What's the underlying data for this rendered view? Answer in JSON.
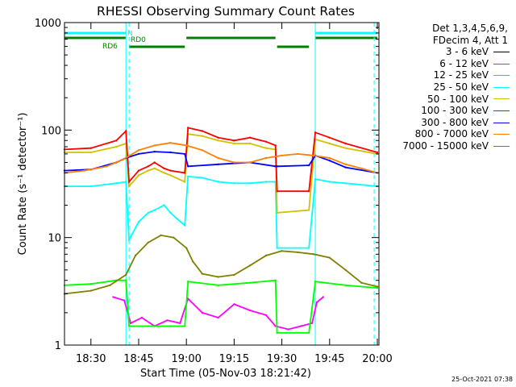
{
  "chart_data": {
    "type": "line",
    "title": "RHESSI Observing Summary Count Rates",
    "xlabel": "Start Time (05-Nov-03 18:21:42)",
    "ylabel": "Count Rate (s⁻¹ detector⁻¹)",
    "yscale": "log",
    "ylim": [
      1,
      1000
    ],
    "xlim": [
      "18:21:42",
      "20:00:30"
    ],
    "x_ticks": [
      "18:30",
      "18:45",
      "19:00",
      "19:15",
      "19:30",
      "19:45",
      "20:00"
    ],
    "y_ticks": [
      "1",
      "10",
      "100",
      "1000"
    ],
    "grid": false,
    "legend_position": "right",
    "legend_header": [
      "Det 1,3,4,5,6,9,",
      "FDecim 4, Att 1"
    ],
    "timestamp": "25-Oct-2021 07:38",
    "flags": [
      {
        "label": "N",
        "color": "#00ffff",
        "segments": [
          [
            "18:21:42",
            "18:41:00"
          ],
          [
            "19:40:30",
            "20:00:00"
          ]
        ]
      },
      {
        "label": "RD0",
        "color": "#008000",
        "segments": [
          [
            "18:21:42",
            "18:41:00"
          ],
          [
            "19:00:00",
            "19:28:00"
          ],
          [
            "19:40:30",
            "20:00:00"
          ]
        ]
      },
      {
        "label": "RD6",
        "color": "#008000",
        "segments": [
          [
            "18:42:00",
            "18:59:30"
          ],
          [
            "19:28:30",
            "19:38:30"
          ]
        ]
      }
    ],
    "vlines": [
      {
        "time": "18:41:00",
        "style": "solid",
        "color": "#00ffff"
      },
      {
        "time": "19:40:30",
        "style": "solid",
        "color": "#00ffff"
      },
      {
        "time": "18:42:00",
        "style": "dashed",
        "color": "#00ffff"
      },
      {
        "time": "19:59:00",
        "style": "dashed",
        "color": "#00ffff"
      }
    ],
    "series": [
      {
        "name": "3 - 6 keV",
        "color": "#000000",
        "points": []
      },
      {
        "name": "6 - 12 keV",
        "color": "#ff00ff",
        "points": [
          [
            "18:37:00",
            2.8
          ],
          [
            "18:40:30",
            2.6
          ],
          [
            "18:42:30",
            1.6
          ],
          [
            "18:46:00",
            1.8
          ],
          [
            "18:50:00",
            1.5
          ],
          [
            "18:54:00",
            1.7
          ],
          [
            "18:58:00",
            1.6
          ],
          [
            "19:00:30",
            2.7
          ],
          [
            "19:05:00",
            2.0
          ],
          [
            "19:10:00",
            1.8
          ],
          [
            "19:15:00",
            2.4
          ],
          [
            "19:20:00",
            2.1
          ],
          [
            "19:25:00",
            1.9
          ],
          [
            "19:28:00",
            1.5
          ],
          [
            "19:32:00",
            1.4
          ],
          [
            "19:36:00",
            1.5
          ],
          [
            "19:39:30",
            1.6
          ],
          [
            "19:41:00",
            2.5
          ],
          [
            "19:43:00",
            2.8
          ]
        ]
      },
      {
        "name": "12 - 25 keV",
        "color": "#00ff00",
        "points": [
          [
            "18:21:42",
            3.6
          ],
          [
            "18:30:00",
            3.7
          ],
          [
            "18:38:00",
            4.0
          ],
          [
            "18:41:00",
            4.0
          ],
          [
            "18:42:00",
            1.5
          ],
          [
            "18:48:00",
            1.5
          ],
          [
            "18:55:00",
            1.5
          ],
          [
            "18:59:30",
            1.5
          ],
          [
            "19:00:30",
            3.9
          ],
          [
            "19:10:00",
            3.6
          ],
          [
            "19:20:00",
            3.8
          ],
          [
            "19:28:00",
            4.0
          ],
          [
            "19:28:30",
            1.3
          ],
          [
            "19:38:30",
            1.3
          ],
          [
            "19:40:30",
            3.9
          ],
          [
            "19:50:00",
            3.6
          ],
          [
            "20:00:00",
            3.4
          ]
        ]
      },
      {
        "name": "25 - 50 keV",
        "color": "#00ffff",
        "points": [
          [
            "18:21:42",
            30
          ],
          [
            "18:30:00",
            30
          ],
          [
            "18:38:00",
            32
          ],
          [
            "18:41:00",
            33
          ],
          [
            "18:42:00",
            9.5
          ],
          [
            "18:45:00",
            14
          ],
          [
            "18:48:00",
            17
          ],
          [
            "18:50:00",
            18
          ],
          [
            "18:53:00",
            20
          ],
          [
            "18:55:00",
            17
          ],
          [
            "18:57:00",
            15
          ],
          [
            "18:59:30",
            13
          ],
          [
            "19:00:30",
            37
          ],
          [
            "19:05:00",
            36
          ],
          [
            "19:10:00",
            33
          ],
          [
            "19:15:00",
            32
          ],
          [
            "19:20:00",
            32
          ],
          [
            "19:25:00",
            33
          ],
          [
            "19:28:00",
            33
          ],
          [
            "19:28:30",
            8
          ],
          [
            "19:38:30",
            8
          ],
          [
            "19:40:30",
            35
          ],
          [
            "19:45:00",
            33
          ],
          [
            "19:50:00",
            32
          ],
          [
            "20:00:00",
            30
          ]
        ]
      },
      {
        "name": "50 - 100 keV",
        "color": "#d4c000",
        "points": [
          [
            "18:21:42",
            62
          ],
          [
            "18:30:00",
            62
          ],
          [
            "18:38:00",
            70
          ],
          [
            "18:41:00",
            75
          ],
          [
            "18:42:00",
            30
          ],
          [
            "18:45:00",
            38
          ],
          [
            "18:48:00",
            42
          ],
          [
            "18:50:00",
            44
          ],
          [
            "18:53:00",
            40
          ],
          [
            "18:55:00",
            38
          ],
          [
            "18:59:30",
            33
          ],
          [
            "19:00:30",
            92
          ],
          [
            "19:05:00",
            88
          ],
          [
            "19:10:00",
            80
          ],
          [
            "19:15:00",
            75
          ],
          [
            "19:20:00",
            75
          ],
          [
            "19:25:00",
            68
          ],
          [
            "19:28:00",
            66
          ],
          [
            "19:28:30",
            17
          ],
          [
            "19:38:30",
            18
          ],
          [
            "19:40:30",
            82
          ],
          [
            "19:45:00",
            75
          ],
          [
            "19:50:00",
            68
          ],
          [
            "20:00:00",
            60
          ]
        ]
      },
      {
        "name": "100 - 300 keV",
        "color": "#ff0000",
        "points": [
          [
            "18:21:42",
            66
          ],
          [
            "18:30:00",
            68
          ],
          [
            "18:38:00",
            80
          ],
          [
            "18:41:00",
            98
          ],
          [
            "18:42:00",
            33
          ],
          [
            "18:45:00",
            42
          ],
          [
            "18:48:00",
            46
          ],
          [
            "18:50:00",
            50
          ],
          [
            "18:53:00",
            44
          ],
          [
            "18:55:00",
            42
          ],
          [
            "18:59:30",
            40
          ],
          [
            "19:00:30",
            105
          ],
          [
            "19:05:00",
            98
          ],
          [
            "19:10:00",
            85
          ],
          [
            "19:15:00",
            80
          ],
          [
            "19:20:00",
            85
          ],
          [
            "19:25:00",
            78
          ],
          [
            "19:28:00",
            72
          ],
          [
            "19:28:30",
            27
          ],
          [
            "19:38:30",
            27
          ],
          [
            "19:40:30",
            95
          ],
          [
            "19:45:00",
            85
          ],
          [
            "19:50:00",
            75
          ],
          [
            "20:00:00",
            62
          ]
        ]
      },
      {
        "name": "300 - 800 keV",
        "color": "#0000ff",
        "points": [
          [
            "18:21:42",
            42
          ],
          [
            "18:30:00",
            43
          ],
          [
            "18:38:00",
            50
          ],
          [
            "18:41:00",
            55
          ],
          [
            "18:45:00",
            60
          ],
          [
            "18:50:00",
            63
          ],
          [
            "18:55:00",
            62
          ],
          [
            "18:59:30",
            60
          ],
          [
            "19:00:30",
            46
          ],
          [
            "19:10:00",
            48
          ],
          [
            "19:20:00",
            50
          ],
          [
            "19:28:00",
            46
          ],
          [
            "19:28:30",
            46
          ],
          [
            "19:38:30",
            47
          ],
          [
            "19:40:30",
            58
          ],
          [
            "19:45:00",
            52
          ],
          [
            "19:50:00",
            45
          ],
          [
            "20:00:00",
            40
          ]
        ]
      },
      {
        "name": "800 - 7000 keV",
        "color": "#ff8000",
        "points": [
          [
            "18:21:42",
            40
          ],
          [
            "18:28:00",
            42
          ],
          [
            "18:35:00",
            46
          ],
          [
            "18:40:00",
            53
          ],
          [
            "18:45:00",
            65
          ],
          [
            "18:50:00",
            72
          ],
          [
            "18:55:00",
            76
          ],
          [
            "19:00:00",
            72
          ],
          [
            "19:05:00",
            65
          ],
          [
            "19:10:00",
            55
          ],
          [
            "19:15:00",
            50
          ],
          [
            "19:20:00",
            50
          ],
          [
            "19:25:00",
            55
          ],
          [
            "19:30:00",
            58
          ],
          [
            "19:35:00",
            60
          ],
          [
            "19:40:00",
            58
          ],
          [
            "19:45:00",
            55
          ],
          [
            "19:50:00",
            48
          ],
          [
            "19:55:00",
            44
          ],
          [
            "20:00:00",
            40
          ]
        ]
      },
      {
        "name": "7000 - 15000 keV",
        "color": "#808000",
        "points": [
          [
            "18:21:42",
            3.0
          ],
          [
            "18:30:00",
            3.2
          ],
          [
            "18:36:00",
            3.6
          ],
          [
            "18:41:00",
            4.5
          ],
          [
            "18:44:00",
            6.8
          ],
          [
            "18:48:00",
            9.0
          ],
          [
            "18:52:00",
            10.5
          ],
          [
            "18:56:00",
            10.0
          ],
          [
            "19:00:00",
            8.0
          ],
          [
            "19:02:00",
            6.0
          ],
          [
            "19:05:00",
            4.6
          ],
          [
            "19:10:00",
            4.3
          ],
          [
            "19:15:00",
            4.5
          ],
          [
            "19:20:00",
            5.5
          ],
          [
            "19:25:00",
            6.8
          ],
          [
            "19:30:00",
            7.5
          ],
          [
            "19:35:00",
            7.3
          ],
          [
            "19:40:00",
            7.0
          ],
          [
            "19:45:00",
            6.5
          ],
          [
            "19:50:00",
            5.0
          ],
          [
            "19:55:00",
            3.8
          ],
          [
            "20:00:00",
            3.5
          ]
        ]
      }
    ]
  }
}
